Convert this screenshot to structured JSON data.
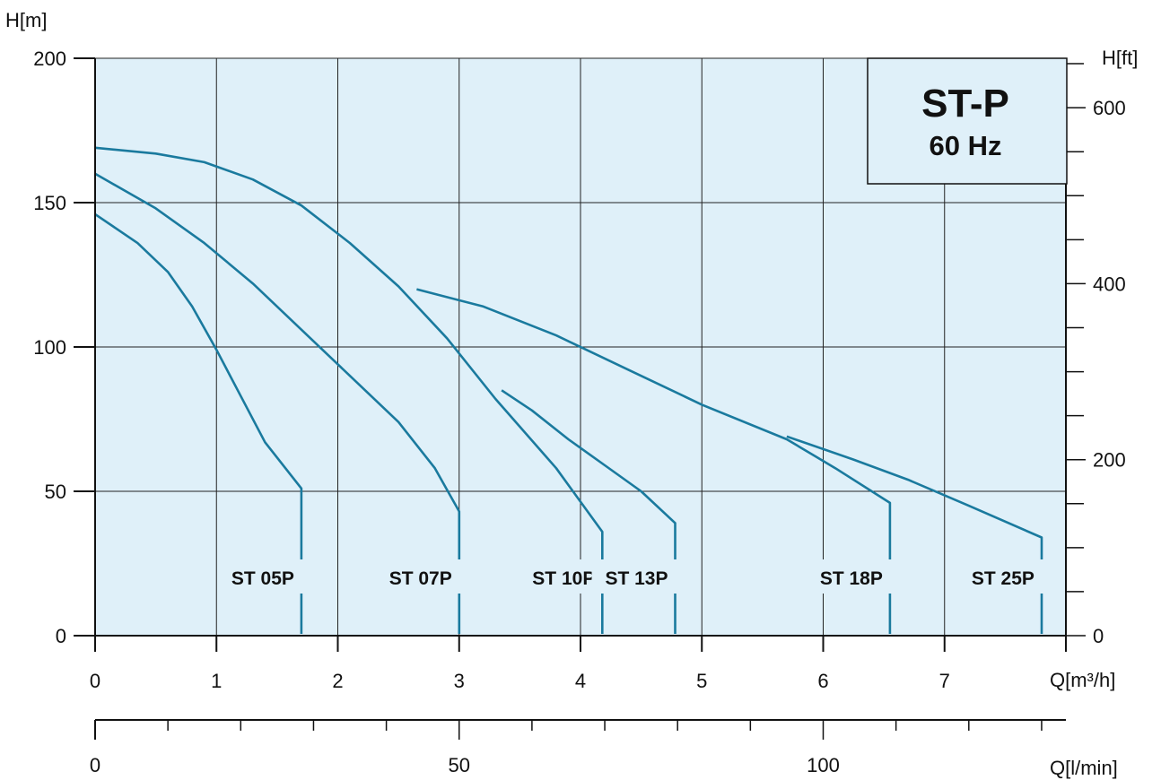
{
  "chart_data": {
    "type": "line",
    "title": "ST-P",
    "subtitle": "60 Hz",
    "left_axis": {
      "label": "H[m]",
      "range": [
        0,
        200
      ],
      "ticks": [
        0,
        50,
        100,
        150,
        200
      ]
    },
    "right_axis": {
      "label": "H[ft]",
      "major_ticks": [
        0,
        200,
        400,
        600
      ],
      "minor_step": 50
    },
    "x_axis": {
      "label": "Q[m³/h]",
      "range": [
        0,
        8
      ],
      "ticks": [
        0,
        1,
        2,
        3,
        4,
        5,
        6,
        7
      ]
    },
    "x2_axis": {
      "label": "Q[l/min]",
      "major_ticks": [
        0,
        50,
        100
      ],
      "minor_step": 10
    },
    "grid": true,
    "colors": {
      "plot_background": "#dff0f9",
      "curve": "#1a7a9e",
      "grid": "#222222",
      "axis": "#111111"
    },
    "series": [
      {
        "name": "ST 05P",
        "points": [
          [
            0,
            146
          ],
          [
            0.35,
            136
          ],
          [
            0.6,
            126
          ],
          [
            0.8,
            114
          ],
          [
            1.0,
            99
          ],
          [
            1.2,
            83
          ],
          [
            1.4,
            67
          ],
          [
            1.7,
            51
          ]
        ]
      },
      {
        "name": "ST 07P",
        "points": [
          [
            0,
            160
          ],
          [
            0.5,
            148
          ],
          [
            0.9,
            136
          ],
          [
            1.3,
            122
          ],
          [
            1.7,
            106
          ],
          [
            2.1,
            90
          ],
          [
            2.5,
            74
          ],
          [
            2.8,
            58
          ],
          [
            3.0,
            43
          ]
        ]
      },
      {
        "name": "ST 10P",
        "points": [
          [
            0,
            169
          ],
          [
            0.5,
            167
          ],
          [
            0.9,
            164
          ],
          [
            1.3,
            158
          ],
          [
            1.7,
            149
          ],
          [
            2.1,
            136
          ],
          [
            2.5,
            121
          ],
          [
            2.9,
            103
          ],
          [
            3.3,
            82
          ],
          [
            3.8,
            58
          ],
          [
            4.18,
            36
          ]
        ]
      },
      {
        "name": "ST 13P",
        "points": [
          [
            3.35,
            85
          ],
          [
            3.6,
            78
          ],
          [
            3.9,
            68
          ],
          [
            4.2,
            59
          ],
          [
            4.5,
            50
          ],
          [
            4.78,
            39
          ]
        ]
      },
      {
        "name": "ST 18P",
        "points": [
          [
            2.65,
            120
          ],
          [
            3.2,
            114
          ],
          [
            3.8,
            104
          ],
          [
            4.4,
            92
          ],
          [
            5.0,
            80
          ],
          [
            5.7,
            68
          ],
          [
            6.1,
            58
          ],
          [
            6.55,
            46
          ]
        ]
      },
      {
        "name": "ST 25P",
        "points": [
          [
            5.7,
            69
          ],
          [
            6.25,
            61
          ],
          [
            6.7,
            54
          ],
          [
            7.2,
            45
          ],
          [
            7.8,
            34
          ]
        ]
      }
    ]
  }
}
